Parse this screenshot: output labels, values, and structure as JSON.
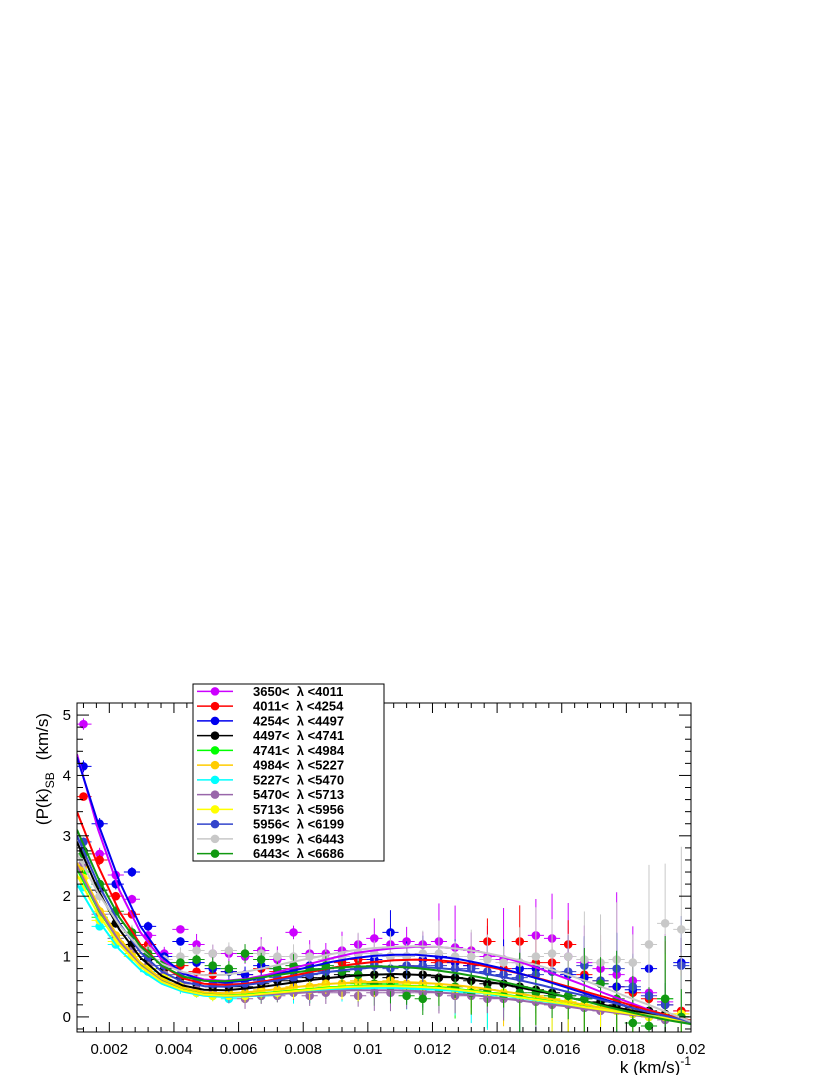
{
  "chart_data": {
    "type": "scatter",
    "title": "",
    "xlabel": "k  (km/s)",
    "xlabel_sup": "-1",
    "ylabel": "(P(k)",
    "ylabel_sub": "SB",
    "ylabel_unit": "(km/s)",
    "xlim": [
      0.001,
      0.02
    ],
    "ylim": [
      -0.25,
      5.2
    ],
    "x_ticks": [
      0.002,
      0.004,
      0.006,
      0.008,
      0.01,
      0.012,
      0.014,
      0.016,
      0.018,
      0.02
    ],
    "x_tick_labels": [
      "0.002",
      "0.004",
      "0.006",
      "0.008",
      "0.01",
      "0.012",
      "0.014",
      "0.016",
      "0.018",
      "0.02"
    ],
    "y_ticks": [
      0,
      1,
      2,
      3,
      4,
      5
    ],
    "y_tick_labels": [
      "0",
      "1",
      "2",
      "3",
      "4",
      "5"
    ],
    "grid": false,
    "legend_position": "top-left",
    "x": [
      0.0012,
      0.0017,
      0.0022,
      0.0027,
      0.0032,
      0.0037,
      0.0042,
      0.0047,
      0.0052,
      0.0057,
      0.0062,
      0.0067,
      0.0072,
      0.0077,
      0.0082,
      0.0087,
      0.0092,
      0.0097,
      0.0102,
      0.0107,
      0.0112,
      0.0117,
      0.0122,
      0.0127,
      0.0132,
      0.0137,
      0.0142,
      0.0147,
      0.0152,
      0.0157,
      0.0162,
      0.0167,
      0.0172,
      0.0177,
      0.0182,
      0.0187,
      0.0192,
      0.0197
    ],
    "series": [
      {
        "name": "3650<  λ <4011",
        "color": "#cc00ff",
        "values": [
          4.85,
          2.7,
          2.35,
          1.95,
          1.35,
          1.05,
          1.45,
          1.2,
          1.05,
          1.05,
          1.0,
          1.1,
          0.95,
          1.4,
          1.05,
          1.05,
          1.1,
          1.2,
          1.3,
          1.2,
          1.25,
          1.2,
          1.25,
          1.15,
          1.1,
          1.0,
          0.95,
          0.9,
          1.35,
          1.3,
          1.0,
          0.9,
          0.8,
          0.7,
          0.6,
          0.4,
          0.25,
          0.1
        ],
        "fit": [
          4.35,
          3.1,
          2.1,
          1.4,
          0.95,
          0.72,
          0.62,
          0.6,
          0.63,
          0.7,
          0.79,
          0.88,
          0.97,
          1.05,
          1.1,
          1.14,
          1.16,
          1.16,
          1.13,
          1.08,
          1.0,
          0.9,
          0.78,
          0.65,
          0.52,
          0.38,
          0.25,
          0.12,
          0.0,
          -0.1
        ]
      },
      {
        "name": "4011<  λ <4254",
        "color": "#ff0000",
        "values": [
          3.65,
          2.6,
          2.0,
          1.7,
          1.2,
          0.95,
          0.85,
          0.75,
          0.7,
          0.75,
          0.7,
          0.8,
          0.75,
          0.8,
          0.85,
          0.8,
          0.9,
          0.95,
          0.9,
          1.0,
          0.85,
          0.95,
          0.9,
          0.9,
          0.85,
          1.25,
          0.8,
          1.25,
          0.9,
          0.9,
          1.2,
          0.7,
          0.6,
          0.5,
          0.4,
          0.3,
          0.2,
          0.1
        ],
        "fit": [
          3.4,
          2.5,
          1.75,
          1.2,
          0.85,
          0.64,
          0.55,
          0.53,
          0.55,
          0.6,
          0.67,
          0.74,
          0.81,
          0.87,
          0.91,
          0.94,
          0.95,
          0.94,
          0.91,
          0.86,
          0.79,
          0.71,
          0.62,
          0.52,
          0.42,
          0.32,
          0.21,
          0.11,
          0.02,
          -0.06
        ]
      },
      {
        "name": "4254<  λ <4497",
        "color": "#0000ee",
        "values": [
          4.15,
          3.2,
          2.2,
          2.4,
          1.5,
          1.0,
          1.25,
          0.9,
          0.8,
          0.75,
          0.7,
          0.85,
          0.8,
          0.75,
          0.85,
          0.8,
          1.0,
          1.05,
          0.95,
          1.4,
          1.0,
          0.95,
          1.0,
          0.9,
          0.85,
          0.75,
          0.7,
          0.8,
          0.8,
          0.75,
          0.7,
          0.65,
          0.55,
          0.5,
          0.45,
          0.8,
          0.2,
          0.9
        ],
        "fit": [
          4.3,
          3.2,
          2.25,
          1.5,
          1.0,
          0.72,
          0.6,
          0.57,
          0.6,
          0.67,
          0.75,
          0.83,
          0.91,
          0.97,
          1.01,
          1.03,
          1.03,
          1.0,
          0.96,
          0.89,
          0.81,
          0.71,
          0.61,
          0.5,
          0.39,
          0.28,
          0.17,
          0.07,
          -0.02,
          -0.1
        ]
      },
      {
        "name": "4497<  λ <4741",
        "color": "#000000",
        "values": [
          2.75,
          2.1,
          1.55,
          1.2,
          0.95,
          0.8,
          0.65,
          0.55,
          0.5,
          0.5,
          0.5,
          0.55,
          0.6,
          0.6,
          0.65,
          0.65,
          0.7,
          0.7,
          0.7,
          0.65,
          0.7,
          0.7,
          0.65,
          0.65,
          0.6,
          0.55,
          0.55,
          0.5,
          0.45,
          0.4,
          0.35,
          0.3,
          0.25,
          0.2,
          0.15,
          0.1,
          0.05,
          0.0
        ],
        "fit": [
          2.9,
          2.1,
          1.45,
          0.98,
          0.68,
          0.52,
          0.45,
          0.44,
          0.47,
          0.51,
          0.56,
          0.61,
          0.65,
          0.68,
          0.7,
          0.71,
          0.7,
          0.68,
          0.65,
          0.6,
          0.55,
          0.48,
          0.41,
          0.34,
          0.26,
          0.19,
          0.12,
          0.05,
          -0.01,
          -0.07
        ]
      },
      {
        "name": "4741<  λ <4984",
        "color": "#00ff00",
        "values": [
          2.4,
          1.65,
          1.3,
          1.05,
          0.8,
          0.7,
          0.55,
          0.45,
          0.4,
          0.35,
          0.35,
          0.4,
          0.4,
          0.45,
          0.45,
          0.5,
          0.5,
          0.55,
          0.5,
          0.55,
          0.5,
          0.5,
          0.5,
          0.45,
          0.45,
          0.4,
          0.4,
          0.35,
          0.3,
          0.3,
          0.25,
          0.2,
          0.15,
          0.1,
          0.1,
          0.05,
          0.3,
          0.0
        ],
        "fit": [
          2.45,
          1.78,
          1.25,
          0.86,
          0.6,
          0.45,
          0.38,
          0.36,
          0.37,
          0.4,
          0.43,
          0.46,
          0.49,
          0.51,
          0.52,
          0.52,
          0.51,
          0.49,
          0.46,
          0.42,
          0.38,
          0.33,
          0.28,
          0.22,
          0.17,
          0.11,
          0.06,
          0.01,
          -0.04,
          -0.08
        ]
      },
      {
        "name": "4984<  λ <5227",
        "color": "#ffcc00",
        "values": [
          2.5,
          1.75,
          1.35,
          1.05,
          0.85,
          0.7,
          0.55,
          0.45,
          0.4,
          0.4,
          0.4,
          0.45,
          0.45,
          0.5,
          0.5,
          0.55,
          0.55,
          0.6,
          0.55,
          0.6,
          0.55,
          0.55,
          0.5,
          0.5,
          0.45,
          0.45,
          0.4,
          0.35,
          0.35,
          0.3,
          0.25,
          0.2,
          0.15,
          0.1,
          0.1,
          0.05,
          0.0,
          0.05
        ],
        "fit": [
          2.55,
          1.85,
          1.3,
          0.9,
          0.63,
          0.48,
          0.41,
          0.39,
          0.41,
          0.44,
          0.48,
          0.52,
          0.55,
          0.57,
          0.58,
          0.58,
          0.57,
          0.55,
          0.52,
          0.48,
          0.43,
          0.38,
          0.32,
          0.26,
          0.2,
          0.14,
          0.08,
          0.03,
          -0.02,
          -0.07
        ]
      },
      {
        "name": "5227<  λ <5470",
        "color": "#00ffff",
        "values": [
          2.15,
          1.5,
          1.2,
          1.0,
          0.75,
          0.6,
          0.5,
          0.4,
          0.35,
          0.3,
          0.35,
          0.35,
          0.4,
          0.4,
          0.45,
          0.45,
          0.45,
          0.5,
          0.5,
          0.5,
          0.45,
          0.45,
          0.45,
          0.4,
          0.4,
          0.35,
          0.35,
          0.3,
          0.3,
          0.25,
          0.2,
          0.15,
          0.15,
          0.1,
          0.05,
          0.05,
          0.0,
          0.0
        ],
        "fit": [
          2.2,
          1.6,
          1.12,
          0.78,
          0.55,
          0.42,
          0.35,
          0.33,
          0.34,
          0.36,
          0.39,
          0.42,
          0.45,
          0.47,
          0.48,
          0.48,
          0.47,
          0.45,
          0.43,
          0.4,
          0.36,
          0.31,
          0.26,
          0.21,
          0.16,
          0.11,
          0.06,
          0.02,
          -0.03,
          -0.07
        ]
      },
      {
        "name": "5470<  λ <5713",
        "color": "#9966aa",
        "values": [
          2.55,
          1.7,
          1.3,
          1.1,
          0.85,
          0.7,
          0.55,
          0.45,
          0.4,
          0.35,
          0.3,
          0.35,
          0.35,
          0.4,
          0.35,
          0.4,
          0.4,
          0.35,
          0.4,
          0.4,
          0.4,
          0.4,
          0.4,
          0.35,
          0.35,
          0.3,
          0.3,
          0.3,
          0.25,
          0.2,
          0.2,
          0.15,
          0.1,
          0.1,
          0.05,
          0.0,
          -0.05,
          0.0
        ],
        "fit": [
          2.5,
          1.8,
          1.25,
          0.85,
          0.59,
          0.44,
          0.37,
          0.35,
          0.35,
          0.37,
          0.39,
          0.41,
          0.43,
          0.44,
          0.44,
          0.44,
          0.43,
          0.41,
          0.38,
          0.35,
          0.31,
          0.27,
          0.22,
          0.18,
          0.13,
          0.09,
          0.04,
          0.0,
          -0.04,
          -0.08
        ]
      },
      {
        "name": "5713<  λ <5956",
        "color": "#ffff00",
        "values": [
          2.3,
          1.6,
          1.25,
          1.0,
          0.8,
          0.65,
          0.5,
          0.4,
          0.35,
          0.35,
          0.35,
          0.4,
          0.4,
          0.45,
          0.45,
          0.5,
          0.5,
          0.5,
          0.55,
          0.5,
          0.5,
          0.5,
          0.5,
          0.45,
          0.45,
          0.4,
          0.4,
          0.35,
          0.3,
          0.3,
          0.25,
          0.2,
          0.15,
          0.1,
          0.05,
          0.0,
          0.0,
          0.05
        ],
        "fit": [
          2.35,
          1.7,
          1.2,
          0.83,
          0.58,
          0.44,
          0.37,
          0.35,
          0.36,
          0.39,
          0.42,
          0.45,
          0.48,
          0.5,
          0.51,
          0.51,
          0.5,
          0.48,
          0.45,
          0.41,
          0.37,
          0.32,
          0.27,
          0.22,
          0.16,
          0.11,
          0.06,
          0.01,
          -0.03,
          -0.07
        ]
      },
      {
        "name": "5956<  λ <6199",
        "color": "#3344cc",
        "values": [
          2.9,
          2.2,
          1.7,
          1.35,
          1.0,
          0.85,
          0.7,
          0.6,
          0.55,
          0.55,
          0.55,
          0.6,
          0.65,
          0.65,
          0.7,
          0.75,
          0.75,
          0.8,
          0.85,
          0.8,
          0.85,
          0.85,
          0.85,
          0.8,
          0.8,
          0.75,
          0.7,
          0.65,
          0.7,
          0.75,
          0.75,
          0.85,
          0.6,
          0.8,
          0.5,
          0.35,
          0.2,
          0.85
        ],
        "fit": [
          3.0,
          2.2,
          1.55,
          1.07,
          0.75,
          0.58,
          0.51,
          0.5,
          0.53,
          0.58,
          0.64,
          0.7,
          0.75,
          0.79,
          0.82,
          0.83,
          0.83,
          0.81,
          0.78,
          0.73,
          0.67,
          0.6,
          0.52,
          0.43,
          0.35,
          0.26,
          0.17,
          0.08,
          0.0,
          -0.08
        ]
      },
      {
        "name": "6199<  λ <6443",
        "color": "#c8c8c8",
        "values": [
          2.6,
          2.0,
          1.7,
          1.4,
          1.1,
          0.95,
          1.0,
          1.1,
          1.05,
          1.1,
          1.05,
          1.05,
          1.0,
          1.0,
          1.0,
          0.95,
          1.0,
          1.05,
          1.05,
          1.0,
          1.0,
          1.05,
          1.05,
          1.0,
          1.0,
          0.95,
          0.9,
          0.9,
          1.0,
          1.05,
          1.0,
          0.95,
          0.9,
          0.95,
          0.9,
          1.2,
          1.55,
          1.45
        ],
        "fit": [
          2.7,
          2.05,
          1.52,
          1.13,
          0.88,
          0.74,
          0.69,
          0.7,
          0.75,
          0.82,
          0.9,
          0.97,
          1.04,
          1.1,
          1.14,
          1.16,
          1.17,
          1.16,
          1.13,
          1.08,
          1.01,
          0.93,
          0.83,
          0.72,
          0.6,
          0.47,
          0.33,
          0.2,
          0.06,
          -0.08
        ]
      },
      {
        "name": "6443<  λ <6686",
        "color": "#119911",
        "values": [
          2.7,
          2.2,
          1.75,
          1.4,
          1.05,
          0.9,
          0.9,
          0.95,
          0.85,
          0.8,
          1.05,
          0.95,
          0.8,
          0.85,
          0.8,
          0.85,
          0.75,
          0.7,
          0.55,
          0.5,
          0.35,
          0.3,
          0.45,
          0.5,
          0.4,
          0.45,
          0.35,
          0.4,
          0.4,
          0.35,
          0.35,
          0.3,
          0.55,
          0.3,
          -0.1,
          -0.15,
          0.3,
          0.0
        ],
        "fit": [
          3.1,
          2.3,
          1.65,
          1.17,
          0.85,
          0.67,
          0.6,
          0.59,
          0.62,
          0.67,
          0.72,
          0.77,
          0.81,
          0.83,
          0.84,
          0.83,
          0.81,
          0.77,
          0.72,
          0.66,
          0.59,
          0.51,
          0.43,
          0.34,
          0.26,
          0.17,
          0.09,
          0.01,
          -0.06,
          -0.12
        ]
      }
    ]
  }
}
